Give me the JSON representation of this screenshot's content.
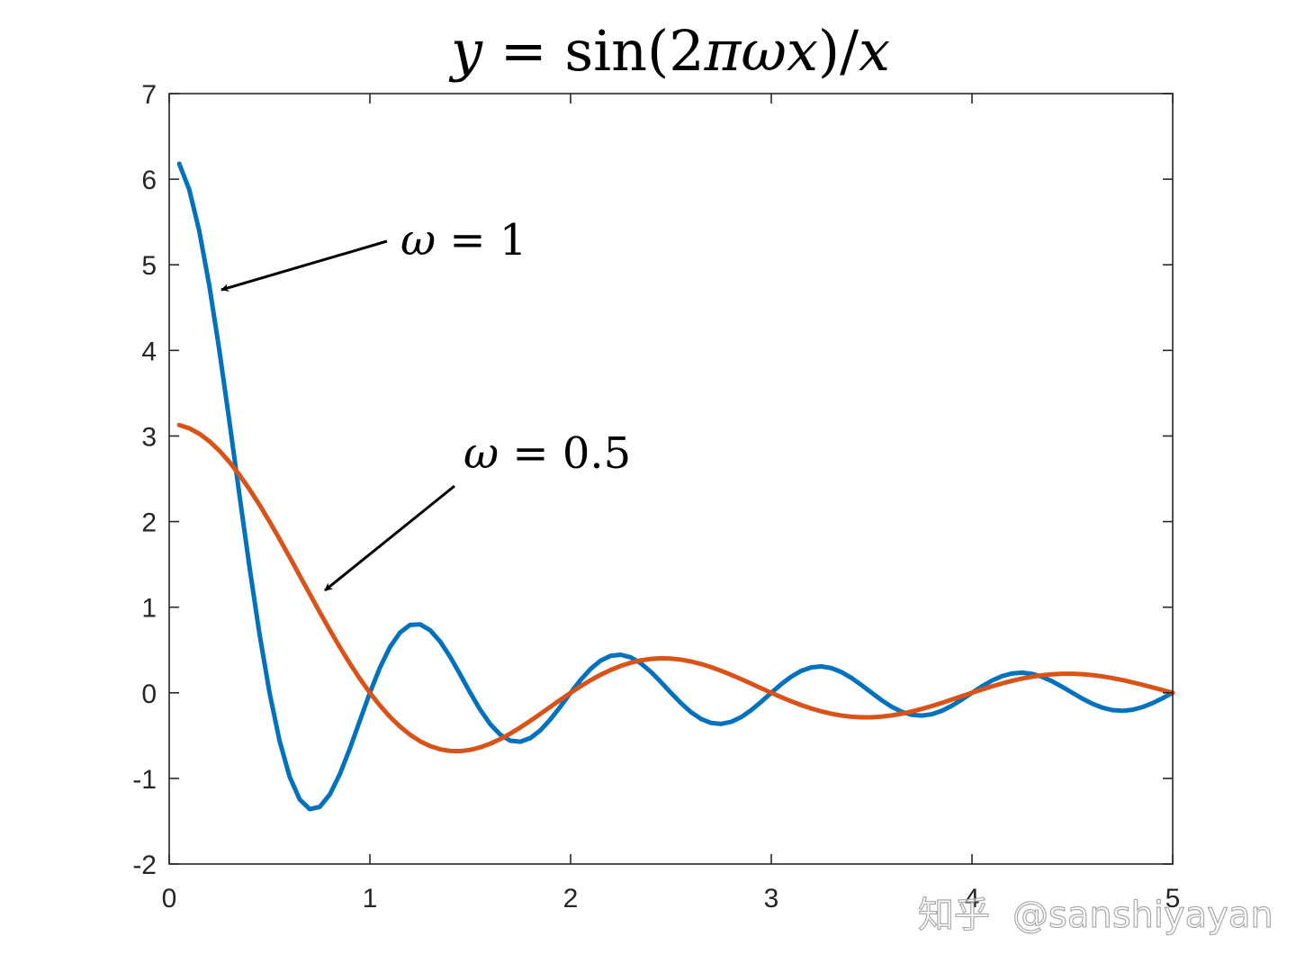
{
  "chart_data": {
    "type": "line",
    "title": {
      "y": "y",
      "eq": " = ",
      "fn": "sin",
      "open": "(2",
      "pi": "π",
      "omega": "ω",
      "x": "x",
      "close": ")/",
      "x2": "x"
    },
    "xlim": [
      0,
      5
    ],
    "ylim": [
      -2,
      7
    ],
    "xticks": [
      "0",
      "1",
      "2",
      "3",
      "4",
      "5"
    ],
    "yticks": [
      "-2",
      "-1",
      "0",
      "1",
      "2",
      "3",
      "4",
      "5",
      "6",
      "7"
    ],
    "grid": false,
    "series": [
      {
        "name": "ω = 1",
        "omega": 1,
        "color": "#0072BD",
        "x_start": 0.05,
        "x_end": 5,
        "x_step": 0.05
      },
      {
        "name": "ω = 0.5",
        "omega": 0.5,
        "color": "#D95319",
        "x_start": 0.05,
        "x_end": 5,
        "x_step": 0.05
      }
    ],
    "annotations": [
      {
        "label_omega": "ω",
        "label_rest": " = 1"
      },
      {
        "label_omega": "ω",
        "label_rest": " = 0.5"
      }
    ]
  },
  "watermark": {
    "site": "知乎",
    "handle": "@sanshiyayan"
  }
}
